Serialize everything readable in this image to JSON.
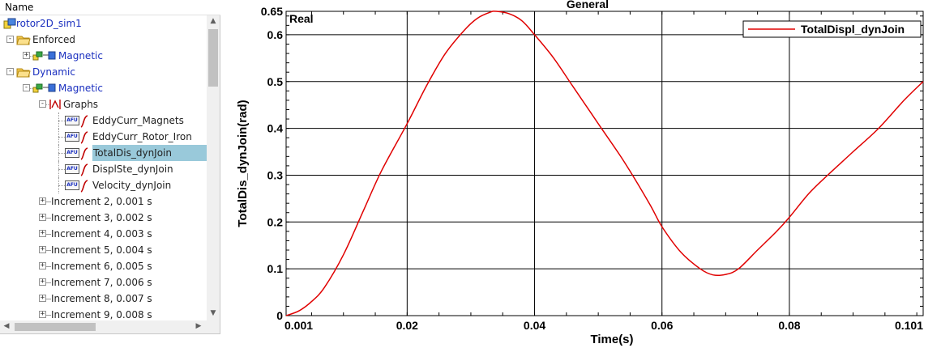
{
  "navigator": {
    "header": "Name",
    "tree": [
      {
        "label": "rotor2D_sim1",
        "level": 0,
        "toggle": "",
        "icon": "sim-icon",
        "color": "blue",
        "selected": false
      },
      {
        "label": "Enforced",
        "level": 0,
        "toggle": "-",
        "icon": "folder-icon",
        "color": "dark",
        "selected": false
      },
      {
        "label": "Magnetic",
        "level": 1,
        "toggle": "+",
        "icon": "solution-icon",
        "color": "blue",
        "selected": false
      },
      {
        "label": "Dynamic",
        "level": 0,
        "toggle": "-",
        "icon": "folder-icon",
        "color": "blue",
        "selected": false
      },
      {
        "label": "Magnetic",
        "level": 1,
        "toggle": "-",
        "icon": "solution-icon",
        "color": "blue",
        "selected": false
      },
      {
        "label": "Graphs",
        "level": 2,
        "toggle": "-",
        "icon": "graphs-icon",
        "color": "dark",
        "selected": false
      },
      {
        "label": "EddyCurr_Magnets",
        "level": 3,
        "toggle": "",
        "icon": "afu-graph-icon",
        "color": "dark",
        "selected": false
      },
      {
        "label": "EddyCurr_Rotor_Iron",
        "level": 3,
        "toggle": "",
        "icon": "afu-graph-icon",
        "color": "dark",
        "selected": false
      },
      {
        "label": "TotalDis_dynJoin",
        "level": 3,
        "toggle": "",
        "icon": "afu-graph-icon",
        "color": "dark",
        "selected": true
      },
      {
        "label": "DisplSte_dynJoin",
        "level": 3,
        "toggle": "",
        "icon": "afu-graph-icon",
        "color": "dark",
        "selected": false
      },
      {
        "label": "Velocity_dynJoin",
        "level": 3,
        "toggle": "",
        "icon": "afu-graph-icon",
        "color": "dark",
        "selected": false
      },
      {
        "label": "Increment 2, 0.001 s",
        "level": 2,
        "toggle": "+",
        "icon": "",
        "color": "dark",
        "selected": false
      },
      {
        "label": "Increment 3, 0.002 s",
        "level": 2,
        "toggle": "+",
        "icon": "",
        "color": "dark",
        "selected": false
      },
      {
        "label": "Increment 4, 0.003 s",
        "level": 2,
        "toggle": "+",
        "icon": "",
        "color": "dark",
        "selected": false
      },
      {
        "label": "Increment 5, 0.004 s",
        "level": 2,
        "toggle": "+",
        "icon": "",
        "color": "dark",
        "selected": false
      },
      {
        "label": "Increment 6, 0.005 s",
        "level": 2,
        "toggle": "+",
        "icon": "",
        "color": "dark",
        "selected": false
      },
      {
        "label": "Increment 7, 0.006 s",
        "level": 2,
        "toggle": "+",
        "icon": "",
        "color": "dark",
        "selected": false
      },
      {
        "label": "Increment 8, 0.007 s",
        "level": 2,
        "toggle": "+",
        "icon": "",
        "color": "dark",
        "selected": false
      },
      {
        "label": "Increment 9, 0.008 s",
        "level": 2,
        "toggle": "+",
        "icon": "",
        "color": "dark",
        "selected": false
      }
    ]
  },
  "chart_data": {
    "type": "line",
    "title": "General",
    "corner_label": "Real",
    "xlabel": "Time(s)",
    "ylabel": "TotalDis_dynJoin(rad)",
    "xlim": [
      0.001,
      0.101
    ],
    "ylim": [
      0,
      0.65
    ],
    "xticks": [
      0.001,
      0.02,
      0.04,
      0.06,
      0.08,
      0.101
    ],
    "xtick_labels": [
      "0.001",
      "0.02",
      "0.04",
      "0.06",
      "0.08",
      "0.101"
    ],
    "yticks": [
      0,
      0.1,
      0.2,
      0.3,
      0.4,
      0.5,
      0.6,
      0.65
    ],
    "ytick_labels": [
      "0",
      "0.1",
      "0.2",
      "0.3",
      "0.4",
      "0.5",
      "0.6",
      "0.65"
    ],
    "grid": true,
    "legend_position": "top-right",
    "line_color": "#e00000",
    "series": [
      {
        "name": "TotalDispl_dynJoin",
        "x": [
          0.001,
          0.003,
          0.005,
          0.007,
          0.01,
          0.013,
          0.016,
          0.02,
          0.023,
          0.026,
          0.029,
          0.031,
          0.033,
          0.034,
          0.036,
          0.038,
          0.04,
          0.043,
          0.046,
          0.05,
          0.054,
          0.058,
          0.06,
          0.063,
          0.066,
          0.068,
          0.07,
          0.072,
          0.075,
          0.078,
          0.08,
          0.083,
          0.086,
          0.09,
          0.094,
          0.098,
          0.101
        ],
        "y": [
          0.0,
          0.01,
          0.03,
          0.06,
          0.13,
          0.22,
          0.31,
          0.41,
          0.49,
          0.56,
          0.61,
          0.635,
          0.648,
          0.65,
          0.645,
          0.63,
          0.6,
          0.55,
          0.49,
          0.41,
          0.33,
          0.24,
          0.19,
          0.135,
          0.1,
          0.087,
          0.088,
          0.1,
          0.14,
          0.18,
          0.21,
          0.26,
          0.3,
          0.35,
          0.4,
          0.46,
          0.5
        ]
      }
    ]
  }
}
